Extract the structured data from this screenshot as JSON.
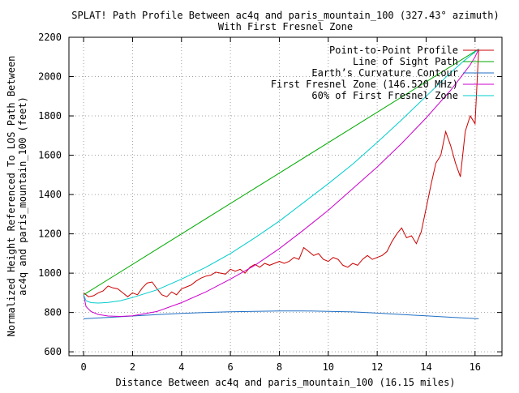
{
  "chart_data": {
    "type": "line",
    "title": "SPLAT! Path Profile Between ac4q and paris_mountain_100 (327.43° azimuth)",
    "subtitle": "With First Fresnel Zone",
    "xlabel": "Distance Between ac4q and paris_mountain_100 (16.15 miles)",
    "ylabel": "Normalized Height Referenced To LOS Path Between ac4q and paris_mountain_100 (feet)",
    "ylabel_lines": [
      "Normalized Height Referenced To LOS Path Between",
      "ac4q and paris_mountain_100 (feet)"
    ],
    "xlim": [
      -0.6,
      17.1
    ],
    "ylim": [
      580,
      2200
    ],
    "xticks": [
      0,
      2,
      4,
      6,
      8,
      10,
      12,
      14,
      16
    ],
    "yticks": [
      600,
      800,
      1000,
      1200,
      1400,
      1600,
      1800,
      2000,
      2200
    ],
    "grid": true,
    "legend_position": "top-right",
    "series": [
      {
        "name": "Point-to-Point Profile",
        "color": "#cc0000",
        "x": [
          0.0,
          0.2,
          0.4,
          0.6,
          0.8,
          1.0,
          1.2,
          1.4,
          1.6,
          1.8,
          2.0,
          2.2,
          2.4,
          2.6,
          2.8,
          3.0,
          3.2,
          3.4,
          3.6,
          3.8,
          4.0,
          4.2,
          4.4,
          4.6,
          4.8,
          5.0,
          5.2,
          5.4,
          5.6,
          5.8,
          6.0,
          6.2,
          6.4,
          6.6,
          6.8,
          7.0,
          7.2,
          7.4,
          7.6,
          7.8,
          8.0,
          8.2,
          8.4,
          8.6,
          8.8,
          9.0,
          9.2,
          9.4,
          9.6,
          9.8,
          10.0,
          10.2,
          10.4,
          10.6,
          10.8,
          11.0,
          11.2,
          11.4,
          11.6,
          11.8,
          12.0,
          12.2,
          12.4,
          12.6,
          12.8,
          13.0,
          13.2,
          13.4,
          13.6,
          13.8,
          14.0,
          14.2,
          14.4,
          14.6,
          14.8,
          15.0,
          15.2,
          15.4,
          15.6,
          15.8,
          16.0,
          16.15
        ],
        "values": [
          900,
          880,
          885,
          900,
          910,
          935,
          925,
          920,
          900,
          880,
          900,
          890,
          925,
          950,
          955,
          920,
          890,
          880,
          905,
          890,
          920,
          930,
          940,
          960,
          975,
          985,
          990,
          1005,
          1000,
          995,
          1020,
          1010,
          1020,
          1000,
          1030,
          1045,
          1030,
          1050,
          1040,
          1050,
          1060,
          1050,
          1060,
          1080,
          1070,
          1130,
          1110,
          1090,
          1100,
          1070,
          1060,
          1080,
          1070,
          1040,
          1030,
          1050,
          1040,
          1070,
          1090,
          1070,
          1080,
          1090,
          1110,
          1160,
          1200,
          1230,
          1180,
          1190,
          1150,
          1210,
          1330,
          1450,
          1560,
          1600,
          1720,
          1650,
          1560,
          1490,
          1720,
          1800,
          1760,
          2140
        ]
      },
      {
        "name": "Line of Sight Path",
        "color": "#00aa00",
        "x": [
          0.0,
          16.15
        ],
        "values": [
          890,
          2140
        ]
      },
      {
        "name": "Earth’s Curvature Contour",
        "color": "#1f6fc4",
        "x": [
          0,
          1,
          2,
          3,
          4,
          5,
          6,
          7,
          8,
          9,
          10,
          11,
          12,
          13,
          14,
          15,
          16,
          16.15
        ],
        "values": [
          768,
          775,
          782,
          789,
          795,
          800,
          804,
          806,
          808,
          808,
          806,
          803,
          797,
          790,
          783,
          776,
          769,
          768
        ]
      },
      {
        "name": "First Fresnel Zone (146.520 MHz)",
        "color": "#cc00cc",
        "x": [
          0.0,
          0.1,
          0.3,
          0.6,
          1.0,
          1.5,
          2.0,
          3.0,
          4.0,
          5.0,
          6.0,
          7.0,
          8.0,
          9.0,
          10.0,
          11.0,
          12.0,
          13.0,
          14.0,
          15.0,
          15.5,
          15.8,
          16.0,
          16.15
        ],
        "values": [
          890,
          830,
          805,
          790,
          782,
          780,
          783,
          805,
          850,
          905,
          970,
          1040,
          1125,
          1220,
          1320,
          1430,
          1540,
          1660,
          1790,
          1930,
          2010,
          2060,
          2100,
          2140
        ]
      },
      {
        "name": "60% of First Fresnel Zone",
        "color": "#00cccc",
        "x": [
          0.0,
          0.1,
          0.3,
          0.6,
          1.0,
          1.5,
          2.0,
          3.0,
          4.0,
          5.0,
          6.0,
          7.0,
          8.0,
          9.0,
          10.0,
          11.0,
          12.0,
          13.0,
          14.0,
          15.0,
          15.5,
          15.8,
          16.0,
          16.15
        ],
        "values": [
          890,
          860,
          850,
          848,
          851,
          860,
          876,
          915,
          970,
          1030,
          1100,
          1180,
          1265,
          1360,
          1455,
          1555,
          1665,
          1780,
          1900,
          2020,
          2075,
          2105,
          2125,
          2140
        ]
      }
    ]
  }
}
